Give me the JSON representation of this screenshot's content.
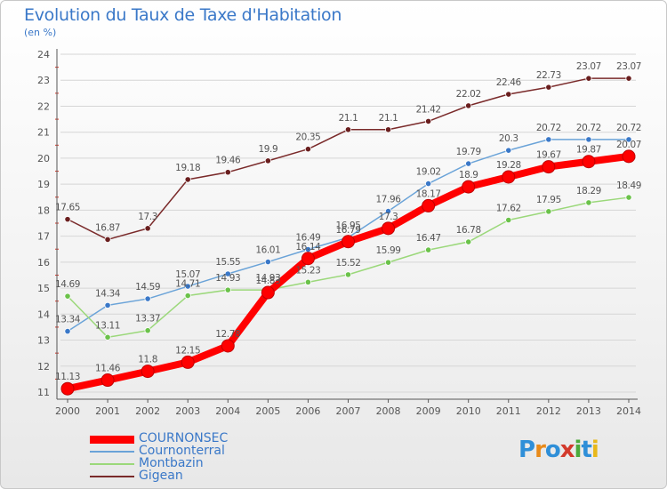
{
  "header": {
    "title": "Evolution du Taux de Taxe d'Habitation",
    "subtitle": "(en %)"
  },
  "brand": {
    "letters": [
      "P",
      "r",
      "o",
      "x",
      "i",
      "t",
      "i"
    ],
    "colors": [
      "#2f8fd8",
      "#e88a1a",
      "#2f8fd8",
      "#d33a2c",
      "#4caa3c",
      "#2f8fd8",
      "#e8b81a"
    ]
  },
  "colors": {
    "title": "#3a78c8",
    "grid": "#d6d6d6",
    "axis": "#555555",
    "label": "#555555"
  },
  "chart_data": {
    "type": "line",
    "x": [
      "2000",
      "2001",
      "2002",
      "2003",
      "2004",
      "2005",
      "2006",
      "2007",
      "2008",
      "2009",
      "2010",
      "2011",
      "2012",
      "2013",
      "2014"
    ],
    "ylim": [
      11,
      24
    ],
    "yticks": [
      "11",
      "12",
      "13",
      "14",
      "15",
      "16",
      "17",
      "18",
      "19",
      "20",
      "21",
      "22",
      "23",
      "24"
    ],
    "grid": "horizontal",
    "legend_placement": "bottom-left",
    "series": [
      {
        "name": "COURNONSEC",
        "color": "#ff0000",
        "emphasis": true,
        "values": [
          11.13,
          11.46,
          11.8,
          12.15,
          12.78,
          14.83,
          16.14,
          16.79,
          17.3,
          18.17,
          18.9,
          19.28,
          19.67,
          19.87,
          20.07
        ],
        "labels": [
          "11.13",
          "11.46",
          "11.8",
          "12.15",
          "12.78",
          "14.83",
          "16.14",
          "16.79",
          "17.3",
          "18.17",
          "18.9",
          "19.28",
          "19.67",
          "19.87",
          "20.07"
        ]
      },
      {
        "name": "Cournonterral",
        "color": "#6aa3d8",
        "marker": "#3a78c8",
        "values": [
          13.34,
          14.34,
          14.59,
          15.07,
          15.55,
          16.01,
          16.49,
          16.95,
          17.96,
          19.02,
          19.79,
          20.3,
          20.72,
          20.72,
          20.72
        ],
        "labels": [
          "13.34",
          "14.34",
          "14.59",
          "15.07",
          "15.55",
          "16.01",
          "16.49",
          "16.95",
          "17.96",
          "19.02",
          "19.79",
          "20.3",
          "20.72",
          "20.72",
          "20.72"
        ]
      },
      {
        "name": "Montbazin",
        "color": "#9bd87a",
        "marker": "#6bc24a",
        "values": [
          14.69,
          13.11,
          13.37,
          14.71,
          14.93,
          14.93,
          15.23,
          15.52,
          15.99,
          16.47,
          16.78,
          17.62,
          17.95,
          18.29,
          18.49
        ],
        "labels": [
          "14.69",
          "13.11",
          "13.37",
          "14.71",
          "14.93",
          "14.93",
          "15.23",
          "15.52",
          "15.99",
          "16.47",
          "16.78",
          "17.62",
          "17.95",
          "18.29",
          "18.49"
        ]
      },
      {
        "name": "Gigean",
        "color": "#7a2a2a",
        "marker": "#6a1f1f",
        "values": [
          17.65,
          16.87,
          17.3,
          19.18,
          19.46,
          19.9,
          20.35,
          21.1,
          21.1,
          21.42,
          22.02,
          22.46,
          22.73,
          23.07,
          23.07
        ],
        "labels": [
          "17.65",
          "16.87",
          "17.3",
          "19.18",
          "19.46",
          "19.9",
          "20.35",
          "21.1",
          "21.1",
          "21.42",
          "22.02",
          "22.46",
          "22.73",
          "23.07",
          "23.07"
        ]
      }
    ]
  }
}
